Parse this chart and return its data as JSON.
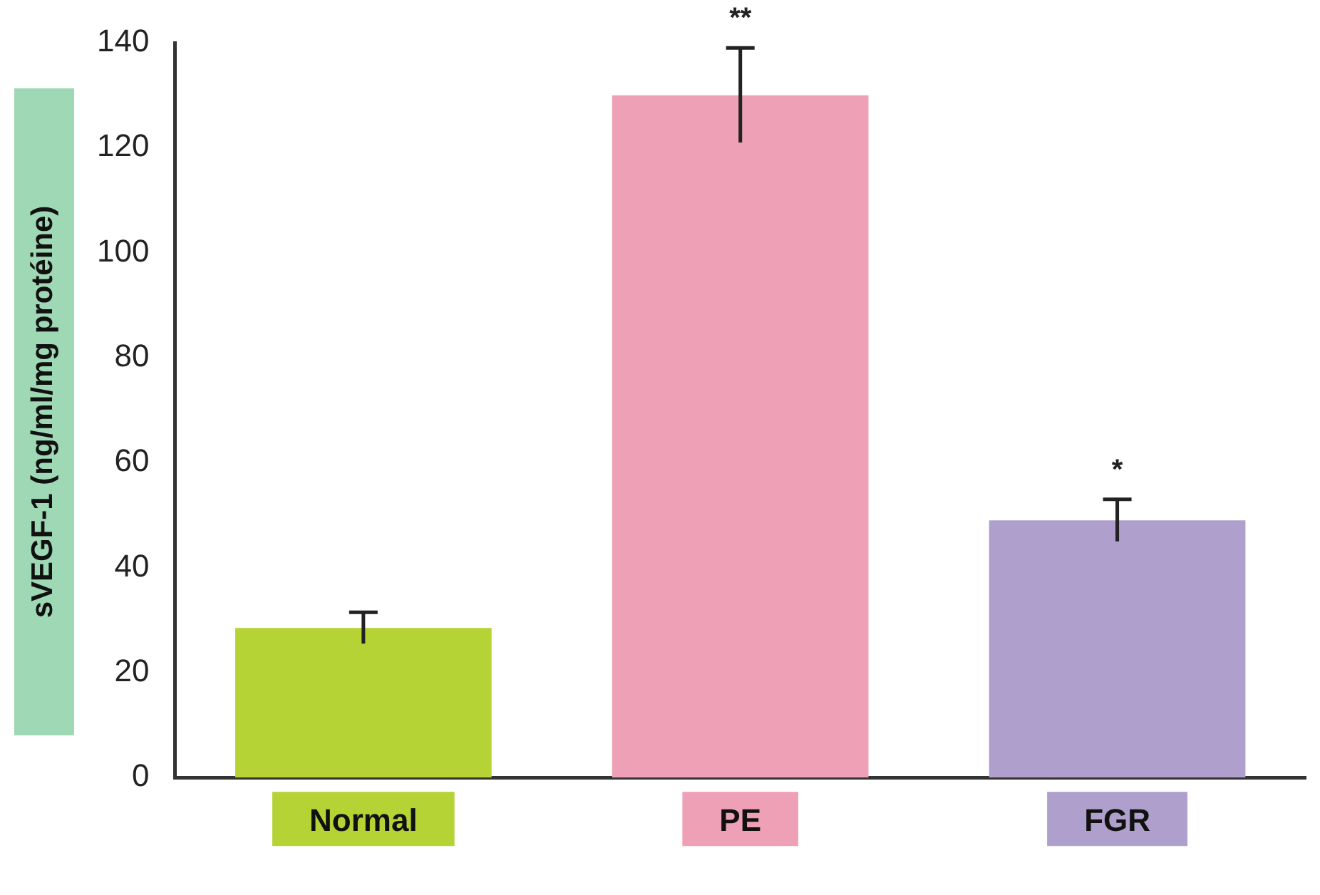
{
  "chart_data": {
    "type": "bar",
    "ylabel": "sVEGF-1 (ng/ml/mg protéine)",
    "categories": [
      "Normal",
      "PE",
      "FGR"
    ],
    "values": [
      28.5,
      130,
      49
    ],
    "colors": [
      "#b5d334",
      "#eea0b6",
      "#ae9fcc"
    ],
    "errors": [
      3,
      9,
      4
    ],
    "ylim": [
      0,
      140
    ],
    "yticks": [
      0,
      20,
      40,
      60,
      80,
      100,
      120,
      140
    ],
    "grid": false,
    "legend": false,
    "annotations": [
      {
        "text": "**",
        "x": "PE",
        "y": 130
      },
      {
        "text": "*",
        "x": "FGR",
        "y": 49
      }
    ]
  }
}
